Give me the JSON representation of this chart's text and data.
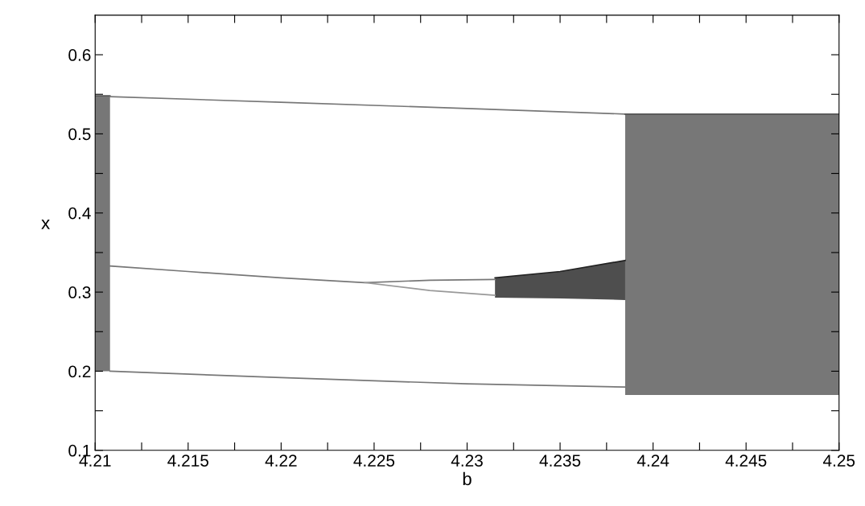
{
  "chart_data": {
    "type": "line",
    "xlabel": "b",
    "ylabel": "x",
    "xlim": [
      4.21,
      4.25
    ],
    "ylim": [
      0.1,
      0.65
    ],
    "xticks": [
      4.21,
      {
        "value": 4.2125,
        "label": null
      },
      4.215,
      {
        "value": 4.2175,
        "label": null
      },
      4.22,
      {
        "value": 4.2225,
        "label": null
      },
      4.225,
      {
        "value": 4.2275,
        "label": null
      },
      4.23,
      {
        "value": 4.2325,
        "label": null
      },
      4.235,
      {
        "value": 4.2375,
        "label": null
      },
      4.24,
      {
        "value": 4.2425,
        "label": null
      },
      4.245,
      {
        "value": 4.2475,
        "label": null
      },
      4.25
    ],
    "yticks": [
      0.1,
      {
        "value": 0.15,
        "label": null
      },
      0.2,
      {
        "value": 0.25,
        "label": null
      },
      0.3,
      {
        "value": 0.35,
        "label": null
      },
      0.4,
      {
        "value": 0.45,
        "label": null
      },
      0.5,
      {
        "value": 0.55,
        "label": null
      },
      0.6
    ],
    "grid": false,
    "marker": "none",
    "line_style": "solid",
    "series": [
      {
        "type": "line",
        "color": "#555555",
        "x": [
          4.21,
          4.2108
        ],
        "values": [
          0.548,
          0.548
        ],
        "upper": [
          0.548,
          0.548
        ],
        "lower": [
          0.2,
          0.2
        ]
      },
      {
        "color": "#777777",
        "x": [
          4.2108,
          4.22,
          4.23,
          4.2385
        ],
        "values": [
          0.547,
          0.54,
          0.532,
          0.525
        ]
      },
      {
        "color": "#777777",
        "x": [
          4.2108,
          4.215,
          4.22,
          4.2245,
          4.228,
          4.2315
        ],
        "values": [
          0.333,
          0.326,
          0.318,
          0.312,
          0.315,
          0.316
        ]
      },
      {
        "color": "#999999",
        "x": [
          4.2245,
          4.228,
          4.2315
        ],
        "values": [
          0.312,
          0.302,
          0.296
        ]
      },
      {
        "type": "line",
        "color": "#222222",
        "x": [
          4.2315,
          4.235,
          4.2385
        ],
        "values": [
          0.318,
          0.326,
          0.34
        ],
        "upper": [
          0.318,
          0.326,
          0.34
        ],
        "lower": [
          0.293,
          0.292,
          0.29
        ]
      },
      {
        "color": "#777777",
        "x": [
          4.2108,
          4.22,
          4.23,
          4.2385
        ],
        "values": [
          0.2,
          0.192,
          0.184,
          0.18
        ]
      },
      {
        "type": "line",
        "color": "#555555",
        "x": [
          4.2385,
          4.25
        ],
        "values": [
          0.525,
          0.525
        ],
        "upper": [
          0.525,
          0.525
        ],
        "lower": [
          0.17,
          0.17
        ]
      }
    ]
  }
}
